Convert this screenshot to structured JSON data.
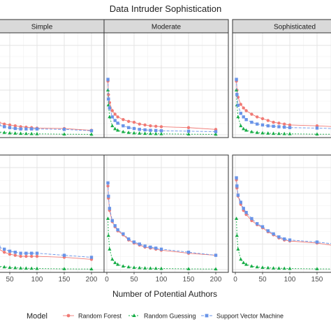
{
  "chart_data": {
    "type": "line",
    "title": "Data Intruder Sophistication",
    "xlabel": "Number of Potential Authors",
    "ylabel": "",
    "columns": [
      "Simple",
      "Moderate",
      "Sophisticated"
    ],
    "x_ticks": [
      "0",
      "50",
      "100",
      "150",
      "200"
    ],
    "xlim": [
      0,
      200
    ],
    "ylim": [
      0,
      1
    ],
    "grid": true,
    "legend": {
      "title": "Model",
      "position": "bottom",
      "entries": [
        "Random Forest",
        "Random Guessing",
        "Support Vector Machine"
      ]
    },
    "colors": {
      "Random Forest": "#f07a75",
      "Random Guessing": "#16ad46",
      "Support Vector Machine": "#6994e8"
    },
    "panels": [
      {
        "column": "Simple",
        "row": 1,
        "series": [
          {
            "name": "Random Forest",
            "x": [
              2,
              3,
              5,
              10,
              15,
              20,
              30,
              40,
              50,
              60,
              70,
              80,
              90,
              100,
              150,
              200
            ],
            "y": [
              0.5,
              0.43,
              0.32,
              0.23,
              0.18,
              0.16,
              0.14,
              0.12,
              0.11,
              0.1,
              0.09,
              0.085,
              0.08,
              0.075,
              0.07,
              0.05
            ]
          },
          {
            "name": "Random Guessing",
            "x": [
              2,
              3,
              5,
              10,
              15,
              20,
              30,
              40,
              50,
              60,
              70,
              80,
              90,
              100,
              150,
              200
            ],
            "y": [
              0.5,
              0.333,
              0.2,
              0.1,
              0.067,
              0.05,
              0.033,
              0.025,
              0.02,
              0.017,
              0.014,
              0.0125,
              0.011,
              0.01,
              0.0067,
              0.005
            ]
          },
          {
            "name": "Support Vector Machine",
            "x": [
              2,
              3,
              5,
              10,
              15,
              20,
              30,
              40,
              50,
              60,
              70,
              80,
              90,
              100,
              150,
              200
            ],
            "y": [
              0.5,
              0.4,
              0.3,
              0.21,
              0.16,
              0.14,
              0.11,
              0.09,
              0.08,
              0.07,
              0.065,
              0.065,
              0.065,
              0.065,
              0.06,
              0.045
            ]
          }
        ]
      },
      {
        "column": "Moderate",
        "row": 1,
        "series": [
          {
            "name": "Random Forest",
            "x": [
              2,
              3,
              5,
              10,
              15,
              20,
              30,
              40,
              50,
              60,
              70,
              80,
              90,
              100,
              150,
              200
            ],
            "y": [
              0.6,
              0.45,
              0.36,
              0.27,
              0.23,
              0.2,
              0.17,
              0.15,
              0.14,
              0.12,
              0.11,
              0.1,
              0.095,
              0.09,
              0.08,
              0.06
            ]
          },
          {
            "name": "Random Guessing",
            "x": [
              2,
              3,
              5,
              10,
              15,
              20,
              30,
              40,
              50,
              60,
              70,
              80,
              90,
              100,
              150,
              200
            ],
            "y": [
              0.5,
              0.333,
              0.2,
              0.1,
              0.067,
              0.05,
              0.033,
              0.025,
              0.02,
              0.017,
              0.014,
              0.0125,
              0.011,
              0.01,
              0.0067,
              0.005
            ]
          },
          {
            "name": "Support Vector Machine",
            "x": [
              2,
              3,
              5,
              10,
              15,
              20,
              30,
              40,
              50,
              60,
              70,
              80,
              90,
              100,
              150,
              200
            ],
            "y": [
              0.62,
              0.4,
              0.3,
              0.2,
              0.16,
              0.13,
              0.1,
              0.08,
              0.07,
              0.06,
              0.055,
              0.05,
              0.048,
              0.045,
              0.04,
              0.035
            ]
          }
        ]
      },
      {
        "column": "Sophisticated",
        "row": 1,
        "series": [
          {
            "name": "Random Forest",
            "x": [
              2,
              3,
              5,
              10,
              15,
              20,
              30,
              40,
              50,
              60,
              70,
              80,
              90,
              100,
              150,
              200
            ],
            "y": [
              0.6,
              0.5,
              0.42,
              0.34,
              0.3,
              0.27,
              0.23,
              0.2,
              0.18,
              0.16,
              0.14,
              0.13,
              0.12,
              0.11,
              0.1,
              0.085
            ]
          },
          {
            "name": "Random Guessing",
            "x": [
              2,
              3,
              5,
              10,
              15,
              20,
              30,
              40,
              50,
              60,
              70,
              80,
              90,
              100,
              150,
              200
            ],
            "y": [
              0.5,
              0.333,
              0.2,
              0.1,
              0.067,
              0.05,
              0.033,
              0.025,
              0.02,
              0.017,
              0.014,
              0.0125,
              0.011,
              0.01,
              0.0067,
              0.005
            ]
          },
          {
            "name": "Support Vector Machine",
            "x": [
              2,
              3,
              5,
              10,
              15,
              20,
              30,
              40,
              50,
              60,
              70,
              80,
              90,
              100,
              150,
              200
            ],
            "y": [
              0.62,
              0.45,
              0.33,
              0.24,
              0.2,
              0.17,
              0.14,
              0.12,
              0.11,
              0.1,
              0.095,
              0.09,
              0.085,
              0.08,
              0.075,
              0.065
            ]
          }
        ]
      },
      {
        "column": "Simple",
        "row": 2,
        "series": [
          {
            "name": "Random Forest",
            "x": [
              2,
              3,
              5,
              10,
              15,
              20,
              30,
              40,
              50,
              60,
              70,
              80,
              90,
              100,
              150,
              200
            ],
            "y": [
              0.55,
              0.45,
              0.36,
              0.29,
              0.26,
              0.24,
              0.2,
              0.17,
              0.15,
              0.14,
              0.13,
              0.13,
              0.13,
              0.13,
              0.12,
              0.1
            ]
          },
          {
            "name": "Random Guessing",
            "x": [
              2,
              3,
              5,
              10,
              15,
              20,
              30,
              40,
              50,
              60,
              70,
              80,
              90,
              100,
              150,
              200
            ],
            "y": [
              0.5,
              0.333,
              0.2,
              0.1,
              0.067,
              0.05,
              0.033,
              0.025,
              0.02,
              0.017,
              0.014,
              0.0125,
              0.011,
              0.01,
              0.0067,
              0.005
            ]
          },
          {
            "name": "Support Vector Machine",
            "x": [
              2,
              3,
              5,
              10,
              15,
              20,
              30,
              40,
              50,
              60,
              70,
              80,
              90,
              100,
              150,
              200
            ],
            "y": [
              0.52,
              0.42,
              0.35,
              0.29,
              0.26,
              0.25,
              0.22,
              0.2,
              0.18,
              0.17,
              0.16,
              0.16,
              0.16,
              0.16,
              0.14,
              0.12
            ]
          }
        ]
      },
      {
        "column": "Moderate",
        "row": 2,
        "series": [
          {
            "name": "Random Forest",
            "x": [
              2,
              3,
              5,
              10,
              15,
              20,
              30,
              40,
              50,
              60,
              70,
              80,
              90,
              100,
              150,
              200
            ],
            "y": [
              0.82,
              0.7,
              0.58,
              0.47,
              0.42,
              0.38,
              0.34,
              0.29,
              0.26,
              0.24,
              0.22,
              0.21,
              0.2,
              0.19,
              0.16,
              0.14
            ]
          },
          {
            "name": "Random Guessing",
            "x": [
              2,
              3,
              5,
              10,
              15,
              20,
              30,
              40,
              50,
              60,
              70,
              80,
              90,
              100,
              150,
              200
            ],
            "y": [
              0.5,
              0.333,
              0.2,
              0.1,
              0.067,
              0.05,
              0.033,
              0.025,
              0.02,
              0.017,
              0.014,
              0.0125,
              0.011,
              0.01,
              0.0067,
              0.005
            ]
          },
          {
            "name": "Support Vector Machine",
            "x": [
              2,
              3,
              5,
              10,
              15,
              20,
              30,
              40,
              50,
              60,
              70,
              80,
              90,
              100,
              150,
              200
            ],
            "y": [
              0.85,
              0.72,
              0.6,
              0.48,
              0.43,
              0.39,
              0.35,
              0.3,
              0.27,
              0.25,
              0.23,
              0.22,
              0.21,
              0.2,
              0.17,
              0.14
            ]
          }
        ]
      },
      {
        "column": "Sophisticated",
        "row": 2,
        "series": [
          {
            "name": "Random Forest",
            "x": [
              2,
              3,
              5,
              10,
              15,
              20,
              30,
              40,
              50,
              60,
              70,
              80,
              90,
              100,
              150,
              200
            ],
            "y": [
              0.88,
              0.8,
              0.72,
              0.64,
              0.58,
              0.54,
              0.48,
              0.44,
              0.41,
              0.37,
              0.34,
              0.31,
              0.29,
              0.28,
              0.26,
              0.22
            ]
          },
          {
            "name": "Random Guessing",
            "x": [
              2,
              3,
              5,
              10,
              15,
              20,
              30,
              40,
              50,
              60,
              70,
              80,
              90,
              100,
              150,
              200
            ],
            "y": [
              0.5,
              0.333,
              0.2,
              0.1,
              0.067,
              0.05,
              0.033,
              0.025,
              0.02,
              0.017,
              0.014,
              0.0125,
              0.011,
              0.01,
              0.0067,
              0.005
            ]
          },
          {
            "name": "Support Vector Machine",
            "x": [
              2,
              3,
              5,
              10,
              15,
              20,
              30,
              40,
              50,
              60,
              70,
              80,
              90,
              100,
              150,
              200
            ],
            "y": [
              0.9,
              0.82,
              0.73,
              0.66,
              0.6,
              0.56,
              0.5,
              0.45,
              0.42,
              0.38,
              0.35,
              0.32,
              0.3,
              0.29,
              0.27,
              0.24
            ]
          }
        ]
      }
    ]
  }
}
